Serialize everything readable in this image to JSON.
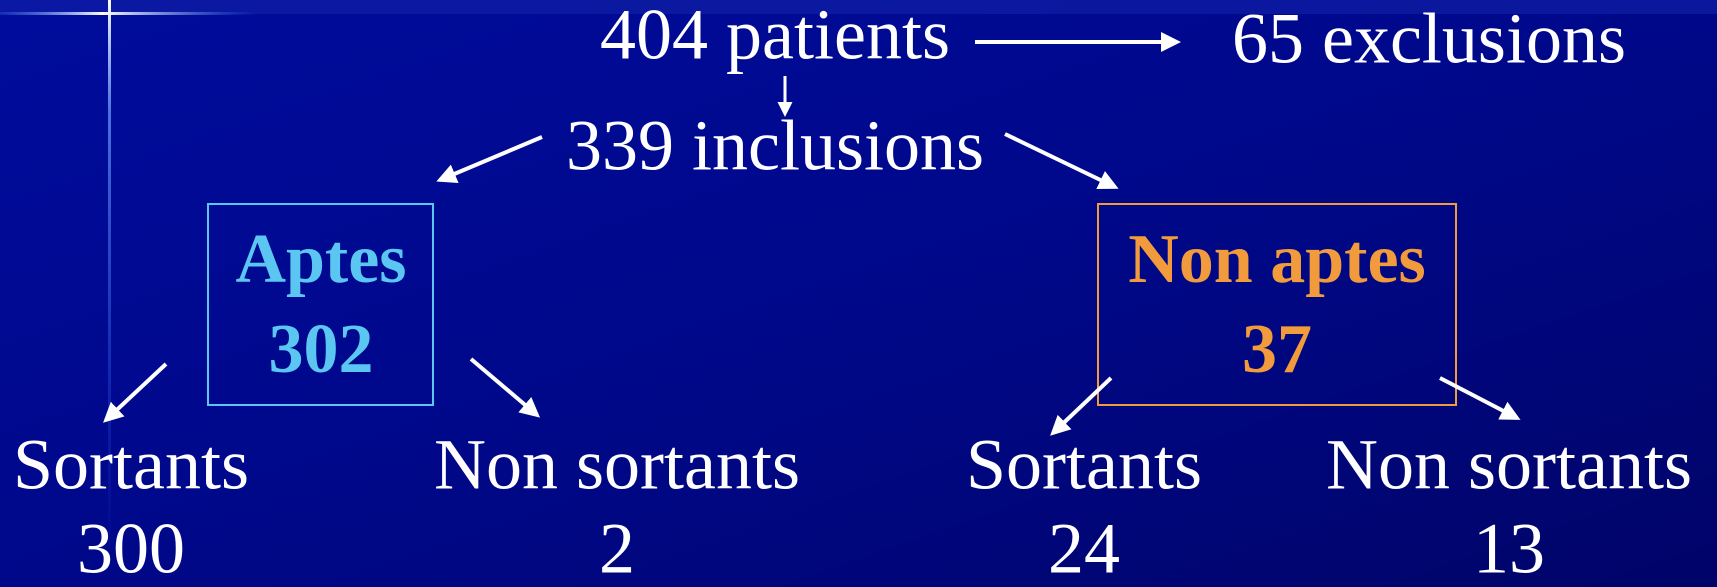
{
  "nodes": [
    {
      "label": "404 patients"
    },
    {
      "label": "65 exclusions"
    },
    {
      "label": "339 inclusions"
    },
    {
      "label": "Aptes",
      "value": "302"
    },
    {
      "label": "Non aptes",
      "value": "37"
    },
    {
      "label": "Sortants",
      "value": "300"
    },
    {
      "label": "Non sortants",
      "value": "2"
    },
    {
      "label": "Sortants",
      "value": "24"
    },
    {
      "label": "Non sortants",
      "value": "13"
    }
  ]
}
